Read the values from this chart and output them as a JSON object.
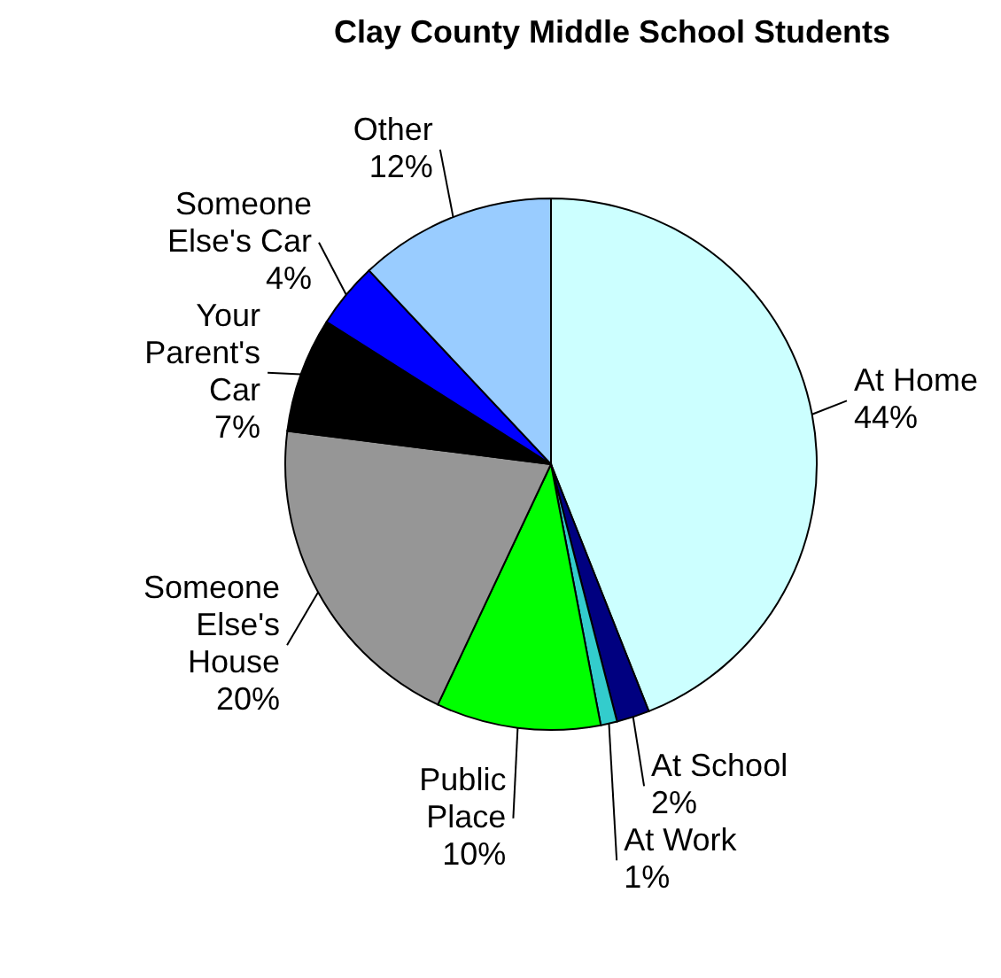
{
  "chart_data": {
    "type": "pie",
    "title": "Clay County Middle School Students",
    "categories": [
      "At Home",
      "At School",
      "At Work",
      "Public Place",
      "Someone Else's House",
      "Your Parent's Car",
      "Someone Else's Car",
      "Other"
    ],
    "values": [
      44,
      2,
      1,
      10,
      20,
      7,
      4,
      12
    ],
    "value_labels": [
      "44%",
      "2%",
      "1%",
      "10%",
      "20%",
      "7%",
      "4%",
      "12%"
    ],
    "colors": [
      "#ccffff",
      "#000080",
      "#33cccc",
      "#00ff00",
      "#969696",
      "#000000",
      "#0000ff",
      "#99ccff"
    ],
    "legend": false
  }
}
